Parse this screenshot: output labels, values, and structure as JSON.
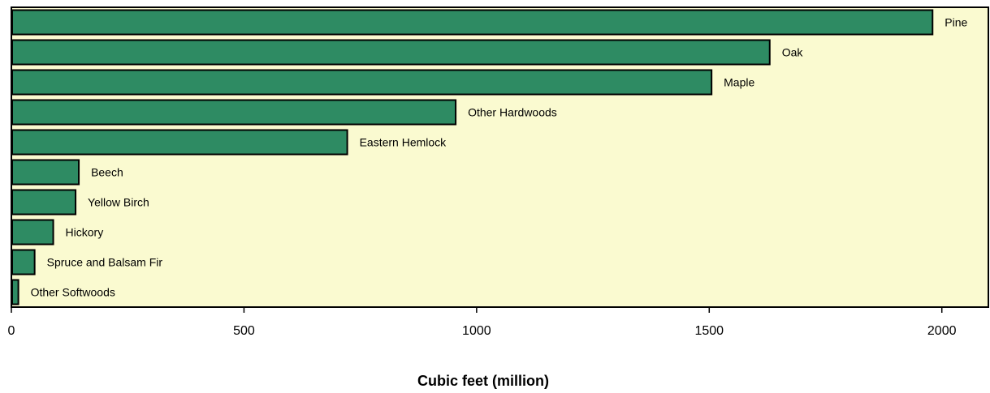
{
  "chart_data": {
    "type": "bar",
    "orientation": "horizontal",
    "categories": [
      "Pine",
      "Oak",
      "Maple",
      "Other Hardwoods",
      "Eastern Hemlock",
      "Beech",
      "Yellow Birch",
      "Hickory",
      "Spruce and Balsam Fir",
      "Other Softwoods"
    ],
    "values": [
      1980,
      1630,
      1505,
      955,
      722,
      145,
      138,
      90,
      50,
      15
    ],
    "xlabel": "Cubic feet (million)",
    "ylabel": "",
    "xlim": [
      0,
      2100
    ],
    "xticks": [
      0,
      500,
      1000,
      1500,
      2000
    ],
    "xtick_labels": [
      "0",
      "500",
      "1000",
      "1500",
      "2000"
    ],
    "grid": false,
    "colors": {
      "bar_fill": "#2e8b63",
      "plot_background": "#fafad0"
    }
  }
}
